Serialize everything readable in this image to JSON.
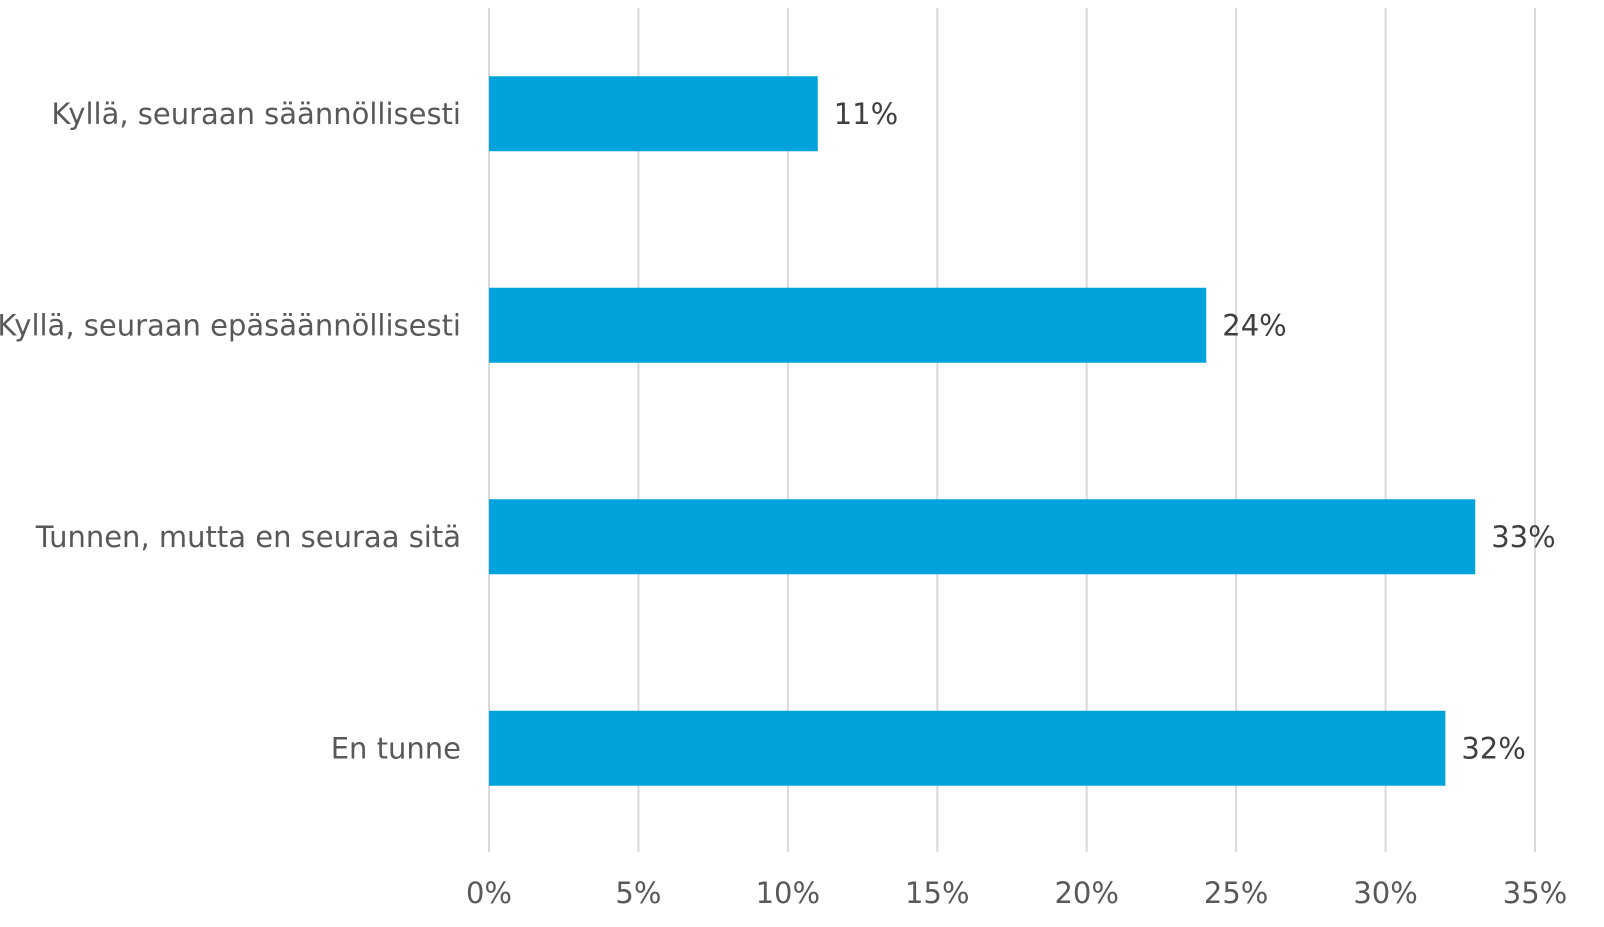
{
  "chart_data": {
    "type": "bar",
    "orientation": "horizontal",
    "title": "",
    "xlabel": "",
    "ylabel": "",
    "categories": [
      "Kyllä, seuraan säännöllisesti",
      "Kyllä, seuraan epäsäännöllisesti",
      "Tunnen, mutta en seuraa sitä",
      "En tunne"
    ],
    "values": [
      11,
      24,
      33,
      32
    ],
    "data_labels": [
      "11%",
      "24%",
      "33%",
      "32%"
    ],
    "xlim": [
      0,
      35
    ],
    "x_ticks": [
      0,
      5,
      10,
      15,
      20,
      25,
      30,
      35
    ],
    "x_tick_labels": [
      "0%",
      "5%",
      "10%",
      "15%",
      "20%",
      "25%",
      "30%",
      "35%"
    ],
    "grid": "vertical",
    "legend": "none",
    "bar_color": "#00a3db"
  }
}
